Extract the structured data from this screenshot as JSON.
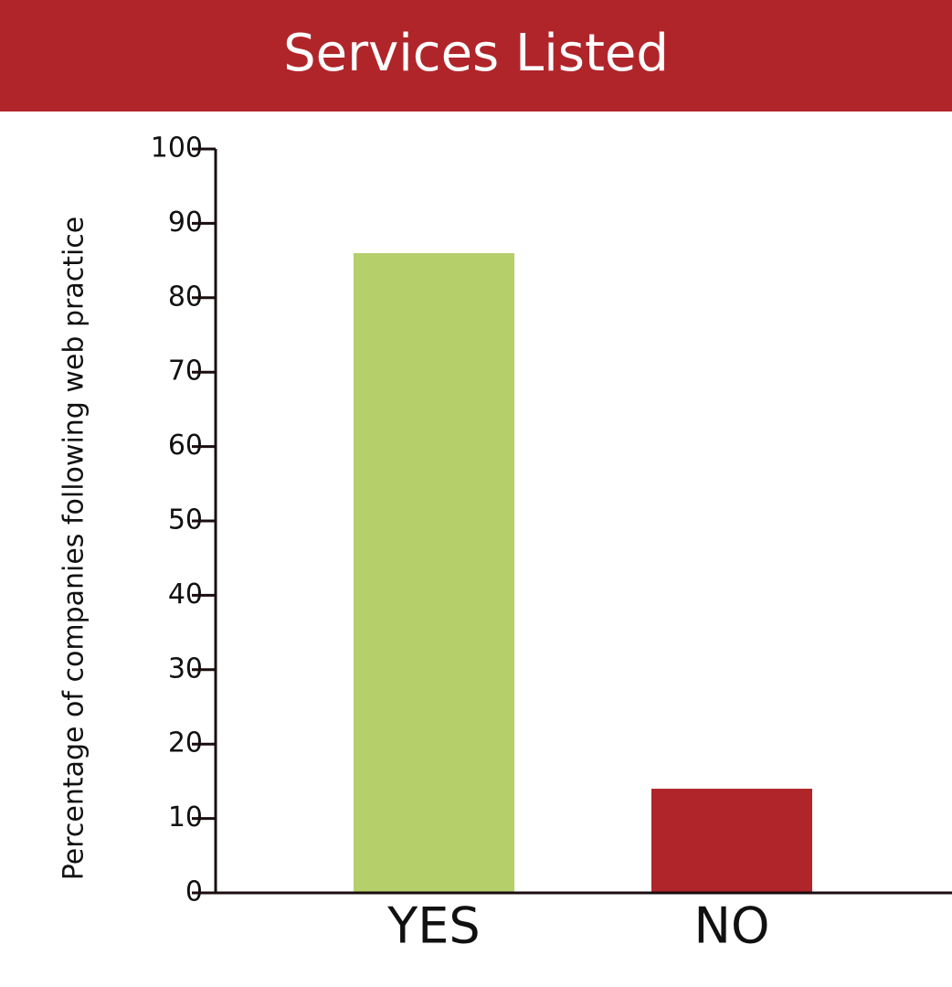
{
  "chart_data": {
    "type": "bar",
    "title": "Services Listed",
    "y_label": "Percentage of companies following web practice",
    "categories": [
      "YES",
      "NO"
    ],
    "values": [
      86,
      14
    ],
    "colors": [
      "#b5cf6b",
      "#b0252a"
    ],
    "ylim": [
      0,
      100
    ],
    "yticks": [
      0,
      10,
      20,
      30,
      40,
      50,
      60,
      70,
      80,
      90,
      100
    ],
    "grid": false
  }
}
